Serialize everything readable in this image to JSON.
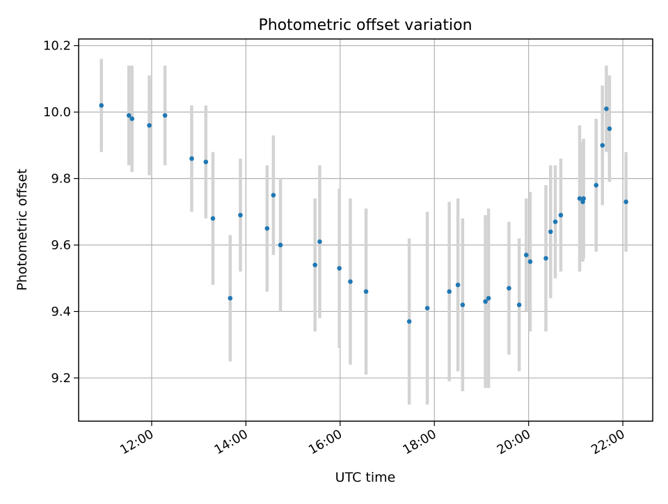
{
  "chart_data": {
    "type": "scatter",
    "title": "Photometric offset variation",
    "xlabel": "UTC time",
    "ylabel": "Photometric offset",
    "x_tick_labels": [
      "12:00",
      "14:00",
      "16:00",
      "18:00",
      "20:00",
      "22:00"
    ],
    "x_ticks": [
      "12:00",
      "14:00",
      "16:00",
      "18:00",
      "20:00",
      "22:00"
    ],
    "y_ticks": [
      9.2,
      9.4,
      9.6,
      9.8,
      10.0,
      10.2
    ],
    "y_tick_labels": [
      "9.2",
      "9.4",
      "9.6",
      "9.8",
      "10.0",
      "10.2"
    ],
    "xlim": [
      "10:27",
      "22:38"
    ],
    "ylim": [
      9.07,
      10.22
    ],
    "grid": true,
    "colors": {
      "point": "#1f77b4",
      "errorbar": "#d3d3d3",
      "grid": "#b0b0b0"
    },
    "series": [
      {
        "x": [
          "10:56",
          "11:31",
          "11:35",
          "11:57",
          "12:17",
          "12:51",
          "13:09",
          "13:18",
          "13:40",
          "13:53",
          "14:27",
          "14:35",
          "14:44",
          "15:28",
          "15:34",
          "15:59",
          "16:13",
          "16:33",
          "17:28",
          "17:51",
          "18:19",
          "18:30",
          "18:36",
          "19:05",
          "19:09",
          "19:35",
          "19:48",
          "19:57",
          "20:02",
          "20:22",
          "20:28",
          "20:34",
          "20:41",
          "21:05",
          "21:09",
          "21:10",
          "21:26",
          "21:34",
          "21:39",
          "21:43",
          "22:04"
        ],
        "y": [
          10.02,
          9.99,
          9.98,
          9.96,
          9.99,
          9.86,
          9.85,
          9.68,
          9.44,
          9.69,
          9.65,
          9.75,
          9.6,
          9.54,
          9.61,
          9.53,
          9.49,
          9.46,
          9.37,
          9.41,
          9.46,
          9.48,
          9.42,
          9.43,
          9.44,
          9.47,
          9.42,
          9.57,
          9.55,
          9.56,
          9.64,
          9.67,
          9.69,
          9.74,
          9.73,
          9.74,
          9.78,
          9.9,
          10.01,
          9.95,
          9.73
        ],
        "yerr": [
          0.14,
          0.15,
          0.16,
          0.15,
          0.15,
          0.16,
          0.17,
          0.2,
          0.19,
          0.17,
          0.19,
          0.18,
          0.2,
          0.2,
          0.23,
          0.24,
          0.25,
          0.25,
          0.25,
          0.29,
          0.27,
          0.26,
          0.26,
          0.26,
          0.27,
          0.2,
          0.2,
          0.17,
          0.21,
          0.22,
          0.2,
          0.17,
          0.17,
          0.22,
          0.18,
          0.18,
          0.2,
          0.18,
          0.13,
          0.16,
          0.15
        ]
      }
    ]
  }
}
